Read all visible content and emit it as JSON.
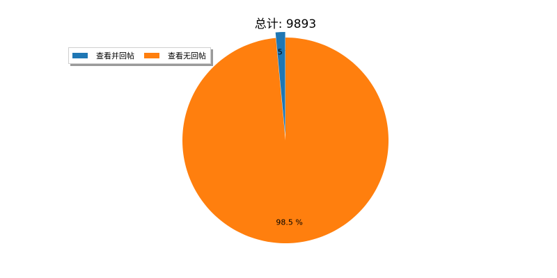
{
  "chart_data": {
    "type": "pie",
    "title": "总计: 9893",
    "slices": [
      {
        "label": "查看并回帖",
        "percent": 1.5,
        "percent_label": "1.5 %",
        "color": "#1f77b4",
        "explode": true
      },
      {
        "label": "查看无回帖",
        "percent": 98.5,
        "percent_label": "98.5 %",
        "color": "#ff7f0e",
        "explode": false
      }
    ],
    "legend_placement": "upper-left",
    "legend_columns": 2,
    "start_angle_deg": 90,
    "direction": "counterclockwise"
  }
}
